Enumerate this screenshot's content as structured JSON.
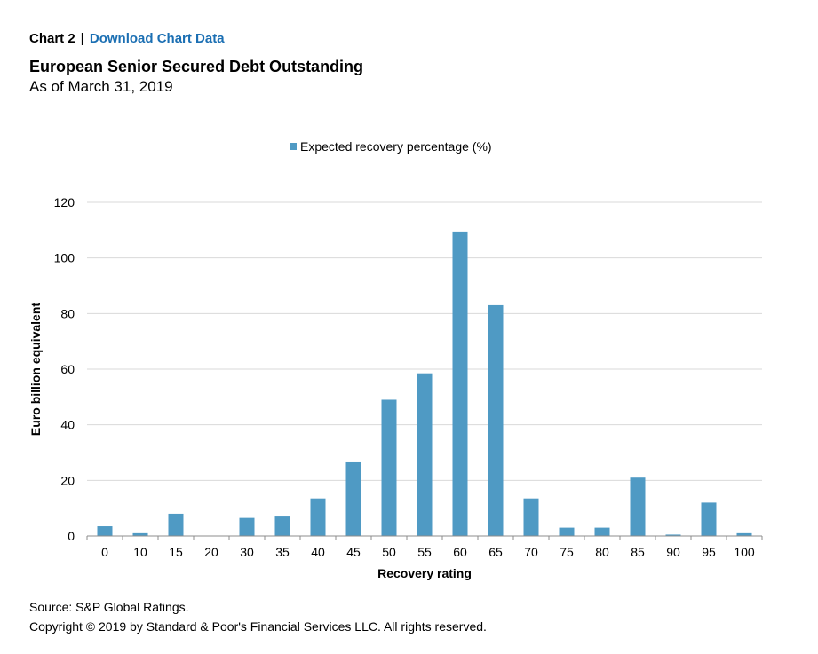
{
  "header": {
    "chart_number": "Chart 2",
    "separator": "|",
    "download_link": "Download Chart Data",
    "title": "European Senior Secured Debt Outstanding",
    "subtitle": "As of March 31, 2019"
  },
  "footer": {
    "source": "Source: S&P Global Ratings.",
    "copyright": "Copyright © 2019 by Standard & Poor's Financial Services LLC. All rights reserved."
  },
  "colors": {
    "bar": "#4f9ac4",
    "grid": "#d9d9d9",
    "axis": "#8c8c8c",
    "link": "#1b6fb3"
  },
  "chart_data": {
    "type": "bar",
    "legend": "top-center",
    "grid": true,
    "xlabel": "Recovery rating",
    "ylabel": "Euro billion equivalent",
    "ylim": [
      0,
      120
    ],
    "yticks": [
      0,
      20,
      40,
      60,
      80,
      100,
      120
    ],
    "categories": [
      "0",
      "10",
      "15",
      "20",
      "30",
      "35",
      "40",
      "45",
      "50",
      "55",
      "60",
      "65",
      "70",
      "75",
      "80",
      "85",
      "90",
      "95",
      "100"
    ],
    "series": [
      {
        "name": "Expected recovery percentage (%)",
        "values": [
          3.5,
          1,
          8,
          0,
          6.5,
          7,
          13.5,
          26.5,
          49,
          58.5,
          109.5,
          83,
          13.5,
          3,
          3,
          21,
          0.5,
          12,
          1
        ]
      }
    ]
  }
}
